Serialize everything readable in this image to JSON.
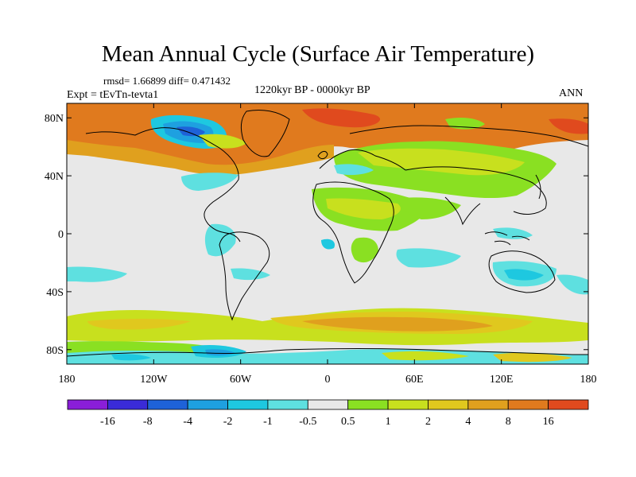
{
  "title": "Mean Annual Cycle (Surface Air Temperature)",
  "stats": "rmsd= 1.66899 diff= 0.471432",
  "experiment": "Expt = tEvTn-tevta1",
  "period": "1220kyr BP - 0000kyr BP",
  "season": "ANN",
  "map": {
    "lon_range": [
      -180,
      180
    ],
    "lat_range": [
      -90,
      90
    ],
    "y_ticks": [
      {
        "lat": 80,
        "label": "80N"
      },
      {
        "lat": 40,
        "label": "40N"
      },
      {
        "lat": 0,
        "label": "0"
      },
      {
        "lat": -40,
        "label": "40S"
      },
      {
        "lat": -80,
        "label": "80S"
      }
    ],
    "x_ticks": [
      {
        "lon": -180,
        "label": "180"
      },
      {
        "lon": -120,
        "label": "120W"
      },
      {
        "lon": -60,
        "label": "60W"
      },
      {
        "lon": 0,
        "label": "0"
      },
      {
        "lon": 60,
        "label": "60E"
      },
      {
        "lon": 120,
        "label": "120E"
      },
      {
        "lon": 180,
        "label": "180"
      }
    ],
    "background_color": "#e8e8e8"
  },
  "colorbar": {
    "colors": [
      "#8a1ed8",
      "#3a2bd8",
      "#1e62d8",
      "#1ea0e0",
      "#1ec8e0",
      "#5ee0e0",
      "#e8e8e8",
      "#8ae022",
      "#c8e01e",
      "#e0c81e",
      "#e0a01e",
      "#e07a1e",
      "#e04a1e"
    ],
    "labels": [
      "-16",
      "-8",
      "-4",
      "-2",
      "-1",
      "-0.5",
      "0.5",
      "1",
      "2",
      "4",
      "8",
      "16"
    ]
  }
}
